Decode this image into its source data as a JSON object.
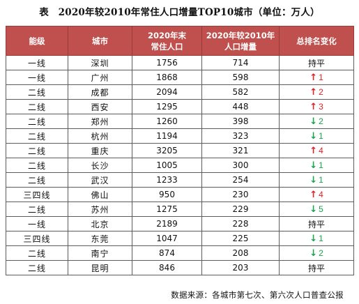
{
  "title": "表　2020年较2010年常住人口增量TOP10城市（单位：万人）",
  "colors": {
    "header_bg": "#c0504d",
    "up": "#e02020",
    "down": "#16a34a"
  },
  "table": {
    "headers": [
      "能级",
      "城市",
      "2020年末\n常住人口",
      "2020年较2010年\n人口增量",
      "总排名变化"
    ],
    "rows": [
      {
        "tier": "一线",
        "city": "深圳",
        "pop2020": "1756",
        "increase": "714",
        "change": {
          "dir": "flat",
          "text": "持平"
        }
      },
      {
        "tier": "一线",
        "city": "广州",
        "pop2020": "1868",
        "increase": "598",
        "change": {
          "dir": "up",
          "text": "1"
        }
      },
      {
        "tier": "二线",
        "city": "成都",
        "pop2020": "2094",
        "increase": "582",
        "change": {
          "dir": "up",
          "text": "2"
        }
      },
      {
        "tier": "二线",
        "city": "西安",
        "pop2020": "1295",
        "increase": "448",
        "change": {
          "dir": "up",
          "text": "3"
        }
      },
      {
        "tier": "二线",
        "city": "郑州",
        "pop2020": "1260",
        "increase": "398",
        "change": {
          "dir": "down",
          "text": "2"
        }
      },
      {
        "tier": "二线",
        "city": "杭州",
        "pop2020": "1194",
        "increase": "323",
        "change": {
          "dir": "down",
          "text": "1"
        }
      },
      {
        "tier": "二线",
        "city": "重庆",
        "pop2020": "3205",
        "increase": "321",
        "change": {
          "dir": "up",
          "text": "4"
        }
      },
      {
        "tier": "二线",
        "city": "长沙",
        "pop2020": "1005",
        "increase": "300",
        "change": {
          "dir": "down",
          "text": "1"
        }
      },
      {
        "tier": "二线",
        "city": "武汉",
        "pop2020": "1233",
        "increase": "254",
        "change": {
          "dir": "down",
          "text": "1"
        }
      },
      {
        "tier": "三四线",
        "city": "佛山",
        "pop2020": "950",
        "increase": "230",
        "change": {
          "dir": "up",
          "text": "4"
        }
      },
      {
        "tier": "二线",
        "city": "苏州",
        "pop2020": "1275",
        "increase": "229",
        "change": {
          "dir": "down",
          "text": "5"
        }
      },
      {
        "tier": "一线",
        "city": "北京",
        "pop2020": "2189",
        "increase": "228",
        "change": {
          "dir": "flat",
          "text": "持平"
        }
      },
      {
        "tier": "三四线",
        "city": "东莞",
        "pop2020": "1047",
        "increase": "225",
        "change": {
          "dir": "down",
          "text": "1"
        }
      },
      {
        "tier": "二线",
        "city": "南宁",
        "pop2020": "874",
        "increase": "208",
        "change": {
          "dir": "down",
          "text": "2"
        }
      },
      {
        "tier": "二线",
        "city": "昆明",
        "pop2020": "846",
        "increase": "203",
        "change": {
          "dir": "flat",
          "text": "持平"
        }
      }
    ]
  },
  "source": "数据来源：各城市第七次、第六次人口普查公报"
}
